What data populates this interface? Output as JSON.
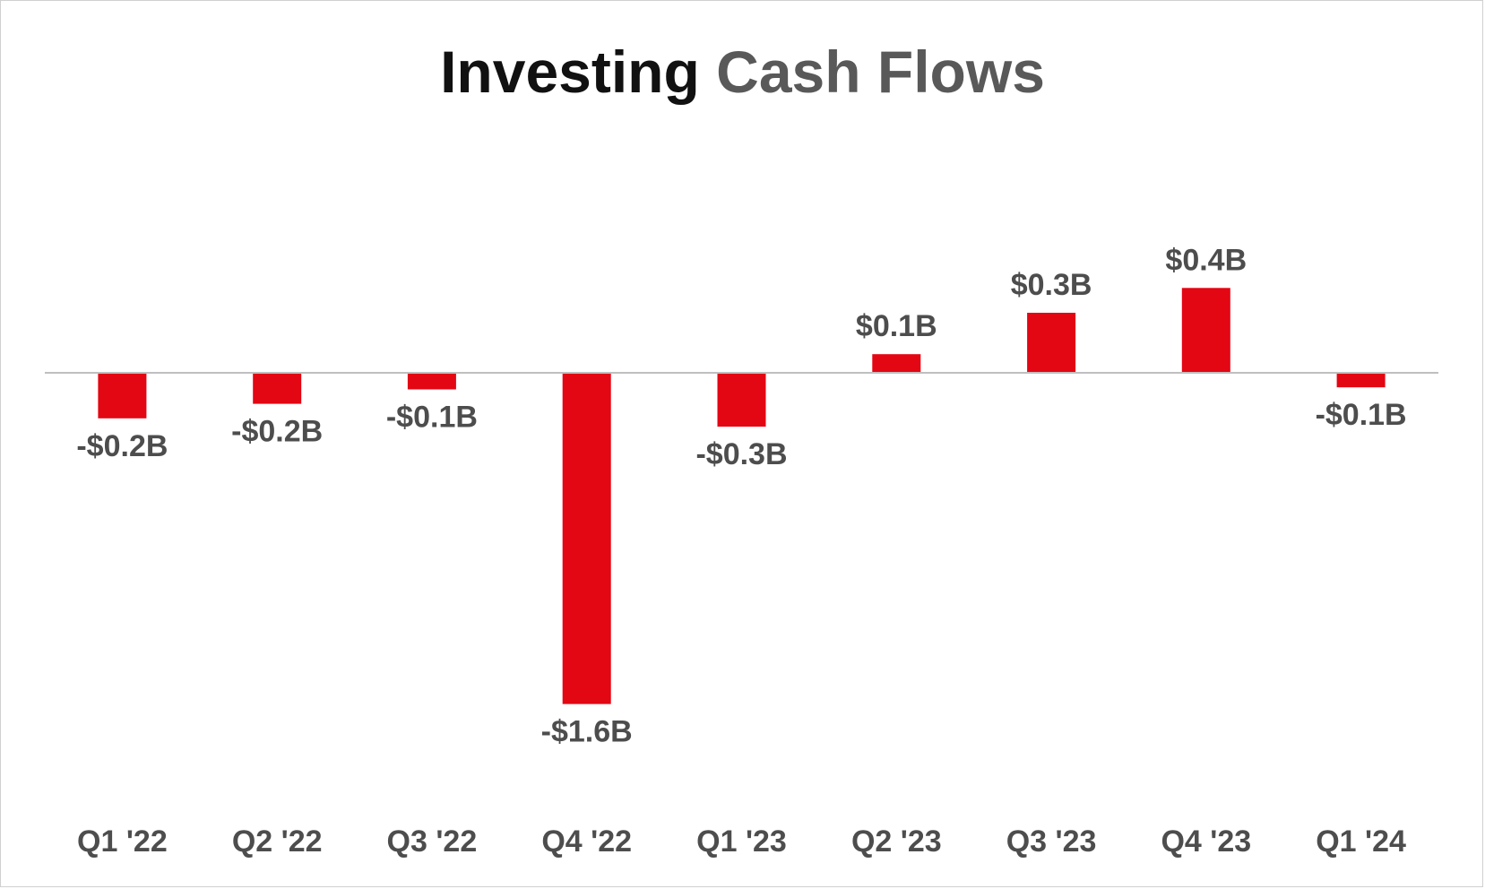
{
  "title": {
    "part1": "Investing",
    "part2": "Cash Flows"
  },
  "colors": {
    "bar": "#e30613",
    "axis": "#bfbfbf",
    "label": "#4d4d4d",
    "title_dark": "#111111",
    "title_gray": "#595959"
  },
  "chart_data": {
    "type": "bar",
    "title": "Investing Cash Flows",
    "categories": [
      "Q1 '22",
      "Q2 '22",
      "Q3 '22",
      "Q4 '22",
      "Q1 '23",
      "Q2 '23",
      "Q3 '23",
      "Q4 '23",
      "Q1 '24"
    ],
    "values": [
      -0.22,
      -0.15,
      -0.08,
      -1.6,
      -0.26,
      0.09,
      0.29,
      0.41,
      -0.07
    ],
    "data_labels": [
      "-$0.2B",
      "-$0.2B",
      "-$0.1B",
      "-$1.6B",
      "-$0.3B",
      "$0.1B",
      "$0.3B",
      "$0.4B",
      "-$0.1B"
    ],
    "unit": "$B",
    "xlabel": "",
    "ylabel": "",
    "grid": false,
    "legend": "none"
  }
}
